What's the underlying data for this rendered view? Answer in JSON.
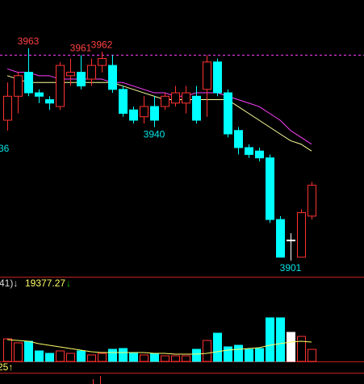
{
  "chart_data": {
    "type": "candlestick",
    "ylim": [
      3896.3,
      3977.1
    ],
    "up_color": "#ff3232",
    "down_color": "#00ffff",
    "flat_color": "#ffffff",
    "open": [
      3942,
      3949,
      3956,
      3950,
      3948,
      3946,
      3955,
      3956,
      3954,
      3958,
      3958,
      3951,
      3945,
      3943,
      3946,
      3946,
      3947,
      3947,
      3949,
      3951,
      3959,
      3950,
      3939,
      3934,
      3933,
      3931,
      3913,
      3907,
      3902,
      3914
    ],
    "high": [
      3953,
      3956,
      3963,
      3951,
      3949,
      3959,
      3960,
      3961,
      3960,
      3962,
      3961,
      3952,
      3946,
      3949,
      3949,
      3950,
      3952,
      3952,
      3952,
      3961,
      3960,
      3951,
      3940,
      3935,
      3934,
      3932,
      3914,
      3909,
      3916,
      3924
    ],
    "low": [
      3939,
      3944,
      3949,
      3947,
      3945,
      3945,
      3952,
      3951,
      3952,
      3956,
      3950,
      3943,
      3941,
      3941,
      3940,
      3945,
      3946,
      3944,
      3941,
      3943,
      3949,
      3937,
      3932,
      3931,
      3930,
      3912,
      3902,
      3901,
      3902,
      3913
    ],
    "close": [
      3949,
      3955,
      3950,
      3949,
      3947,
      3958,
      3956,
      3952,
      3958,
      3960,
      3951,
      3944,
      3942,
      3946,
      3942,
      3949,
      3950,
      3950,
      3942,
      3959,
      3950,
      3938,
      3934,
      3932,
      3931,
      3913,
      3902,
      3907,
      3915,
      3923
    ],
    "moving_averages": [
      {
        "color": "#ff40ff",
        "values": [
          3957,
          3956,
          3956,
          3955,
          3955,
          3954,
          3954,
          3954,
          3954,
          3954,
          3953,
          3953,
          3952,
          3951,
          3950,
          3950,
          3949,
          3949,
          3950,
          3950,
          3950,
          3949,
          3948,
          3947,
          3946,
          3944,
          3942,
          3939,
          3937,
          3935
        ]
      },
      {
        "color": "#ffff99",
        "values": [
          3955,
          3954,
          3953,
          3953,
          3953,
          3953,
          3953,
          3953,
          3953,
          3953,
          3953,
          3952,
          3951,
          3950,
          3949,
          3948,
          3948,
          3948,
          3948,
          3948,
          3948,
          3948,
          3946,
          3944,
          3942,
          3940,
          3938,
          3936,
          3935,
          3933
        ]
      }
    ],
    "high_line": 3961,
    "high_labels": [
      3963,
      3962,
      3961
    ],
    "low_labels": [
      3940,
      3901
    ],
    "left_edge_label": "36",
    "volume": {
      "vlim": [
        0,
        100
      ],
      "values": [
        28,
        23,
        25,
        13,
        10,
        13,
        10,
        13,
        8,
        10,
        15,
        16,
        11,
        8,
        10,
        7,
        7,
        7,
        15,
        26,
        35,
        18,
        20,
        15,
        16,
        54,
        54,
        36,
        31,
        15
      ],
      "ma_color": "#ffff66",
      "ma": [
        27,
        26,
        25,
        22,
        20,
        18,
        16,
        14,
        12,
        11,
        11,
        11,
        11,
        11,
        10,
        10,
        9,
        9,
        9,
        10,
        12,
        14,
        15,
        16,
        17,
        20,
        22,
        24,
        25,
        24
      ],
      "header_left": "41)↓",
      "header_value": "19377.27",
      "header_arrow": "↓"
    },
    "bottom_label": "25↑"
  }
}
